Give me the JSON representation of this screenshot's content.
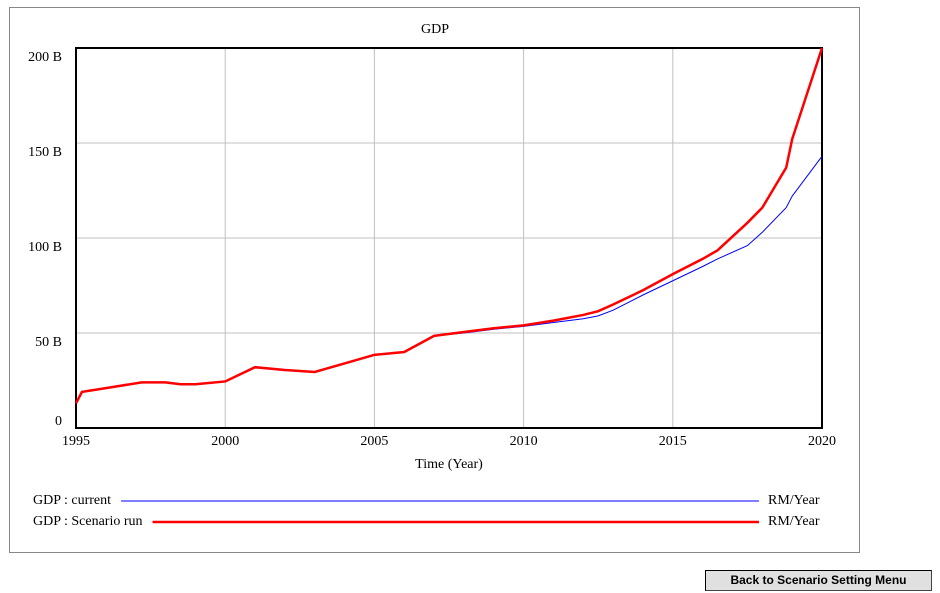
{
  "chart_data": {
    "type": "line",
    "title": "GDP",
    "xlabel": "Time (Year)",
    "x": [
      1995,
      1995.2,
      1996,
      1997.2,
      1998,
      1998.5,
      1999,
      2000,
      2001,
      2002,
      2003,
      2004,
      2005,
      2006,
      2007,
      2008,
      2009,
      2010,
      2011,
      2012,
      2012.5,
      2013,
      2014,
      2015,
      2016,
      2016.5,
      2017.5,
      2018,
      2018.8,
      2019,
      2020
    ],
    "series": [
      {
        "name": "GDP : current",
        "unit": "RM/Year",
        "color": "#0000ff",
        "width": 1,
        "values": [
          13000000000.0,
          19000000000.0,
          21000000000.0,
          24000000000.0,
          24000000000.0,
          23000000000.0,
          23000000000.0,
          24500000000.0,
          32000000000.0,
          30500000000.0,
          29500000000.0,
          34000000000.0,
          38500000000.0,
          40000000000.0,
          48500000000.0,
          50000000000.0,
          52000000000.0,
          53500000000.0,
          55500000000.0,
          57500000000.0,
          59000000000.0,
          62000000000.0,
          70000000000.0,
          77500000000.0,
          85000000000.0,
          89000000000.0,
          96000000000.0,
          103000000000.0,
          116000000000.0,
          122000000000.0,
          143000000000.0
        ]
      },
      {
        "name": "GDP : Scenario run",
        "unit": "RM/Year",
        "color": "#ff0000",
        "width": 2.5,
        "values": [
          13000000000.0,
          19000000000.0,
          21000000000.0,
          24000000000.0,
          24000000000.0,
          23000000000.0,
          23000000000.0,
          24500000000.0,
          32000000000.0,
          30500000000.0,
          29500000000.0,
          34000000000.0,
          38500000000.0,
          40000000000.0,
          48500000000.0,
          50500000000.0,
          52500000000.0,
          54000000000.0,
          56500000000.0,
          59500000000.0,
          61500000000.0,
          65000000000.0,
          72500000000.0,
          81000000000.0,
          89000000000.0,
          93500000000.0,
          108000000000.0,
          116000000000.0,
          137000000000.0,
          152000000000.0,
          200000000000.0
        ]
      }
    ],
    "xlim": [
      1995,
      2020
    ],
    "xticks": [
      1995,
      2000,
      2005,
      2010,
      2015,
      2020
    ],
    "ylim": [
      0,
      200000000000.0
    ],
    "yticks": [
      0,
      {
        "value": 50000000000.0,
        "label": "50 B"
      },
      {
        "value": 100000000000.0,
        "label": "100 B"
      },
      {
        "value": 150000000000.0,
        "label": "150 B"
      },
      {
        "value": 200000000000.0,
        "label": "200 B"
      }
    ],
    "grid": true
  },
  "button": {
    "label": "Back to Scenario Setting Menu"
  }
}
